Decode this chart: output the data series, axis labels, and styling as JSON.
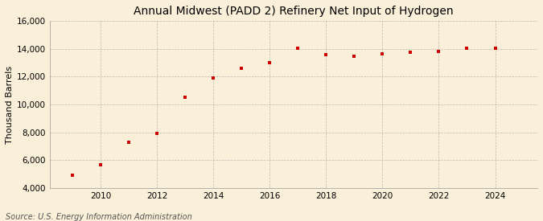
{
  "title": "Annual Midwest (PADD 2) Refinery Net Input of Hydrogen",
  "ylabel": "Thousand Barrels",
  "source": "Source: U.S. Energy Information Administration",
  "background_color": "#faefd9",
  "grid_color": "#aaaaaa",
  "marker_color": "#cc0000",
  "years": [
    2009,
    2010,
    2011,
    2012,
    2013,
    2014,
    2015,
    2016,
    2017,
    2018,
    2019,
    2020,
    2021,
    2022,
    2023,
    2024
  ],
  "values": [
    4900,
    5700,
    7300,
    7900,
    10500,
    11900,
    12600,
    13000,
    14050,
    13600,
    13500,
    13650,
    13750,
    13800,
    14050,
    14050
  ],
  "ylim": [
    4000,
    16000
  ],
  "yticks": [
    4000,
    6000,
    8000,
    10000,
    12000,
    14000,
    16000
  ],
  "xticks": [
    2010,
    2012,
    2014,
    2016,
    2018,
    2020,
    2022,
    2024
  ],
  "xlim": [
    2008.2,
    2025.5
  ],
  "title_fontsize": 10,
  "ylabel_fontsize": 8,
  "tick_fontsize": 7.5,
  "source_fontsize": 7
}
